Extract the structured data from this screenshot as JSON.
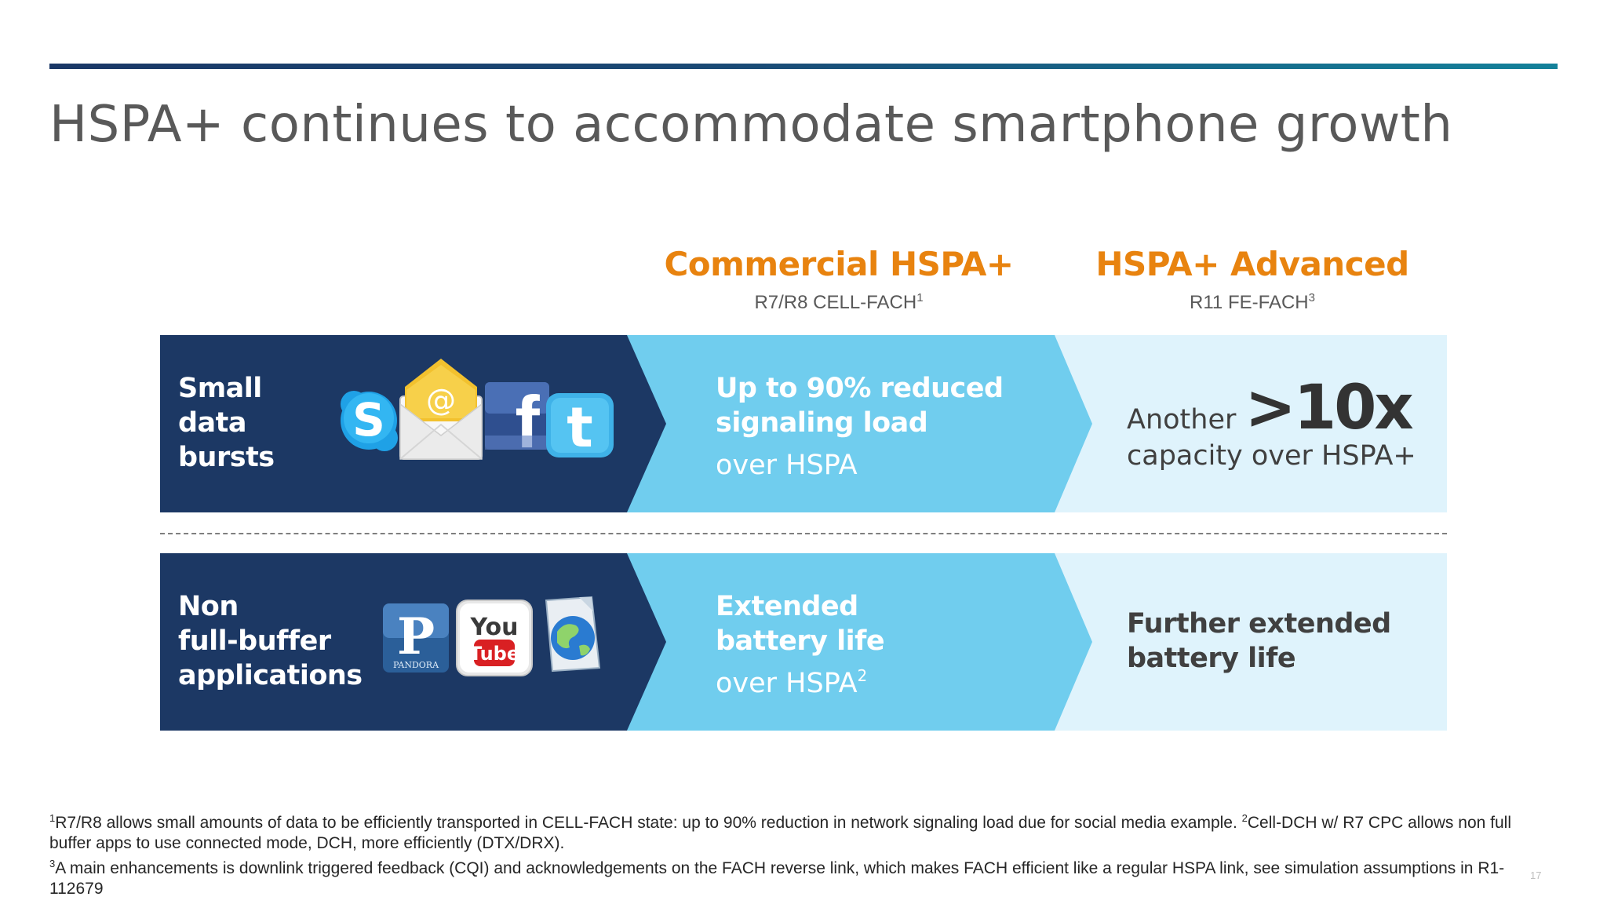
{
  "slide": {
    "title": "HSPA+ continues to accommodate smartphone growth",
    "page_number": "17"
  },
  "columns": {
    "commercial": {
      "title": "Commercial HSPA+",
      "subtitle": "R7/R8 CELL-FACH",
      "subtitle_ref": "1"
    },
    "advanced": {
      "title": "HSPA+ Advanced",
      "subtitle": "R11 FE-FACH",
      "subtitle_ref": "3"
    }
  },
  "rows": {
    "small_data": {
      "label_lines": [
        "Small",
        "data",
        "bursts"
      ],
      "icons": [
        "skype-icon",
        "email-icon",
        "facebook-icon",
        "twitter-icon"
      ],
      "commercial": {
        "strong_lines": [
          "Up to 90% reduced",
          "signaling load"
        ],
        "light_line": "over HSPA",
        "light_ref": ""
      },
      "advanced": {
        "prefix": "Another",
        "highlight": ">10x",
        "suffix": "capacity over HSPA+"
      }
    },
    "non_full_buffer": {
      "label_lines": [
        "Non",
        "full-buffer",
        "applications"
      ],
      "icons": [
        "pandora-icon",
        "youtube-icon",
        "web-browser-icon"
      ],
      "pandora_label": "PANDORA",
      "youtube_top": "You",
      "youtube_bottom": "Tube",
      "commercial": {
        "strong_lines": [
          "Extended",
          "battery life"
        ],
        "light_line": "over HSPA",
        "light_ref": "2"
      },
      "advanced": {
        "strong_lines": [
          "Further extended",
          "battery life"
        ]
      }
    }
  },
  "footnotes": {
    "note1_ref": "1",
    "note1": "R7/R8 allows small amounts of data to be efficiently transported in CELL-FACH state: up to 90% reduction in network signaling load due for social media example. ",
    "note2_ref": "2",
    "note2": "Cell-DCH w/ R7 CPC allows non full buffer apps to use connected mode, DCH, more efficiently (DTX/DRX).",
    "note3_ref": "3",
    "note3": "A main enhancements is downlink triggered feedback (CQI) and acknowledgements on the FACH reverse link, which makes FACH efficient like a regular HSPA link, see simulation assumptions in R1-112679"
  },
  "colors": {
    "navy": "#1c3864",
    "light_blue": "#70cdee",
    "pale_blue": "#dff3fc",
    "orange": "#e8830f",
    "title_gray": "#595959"
  }
}
